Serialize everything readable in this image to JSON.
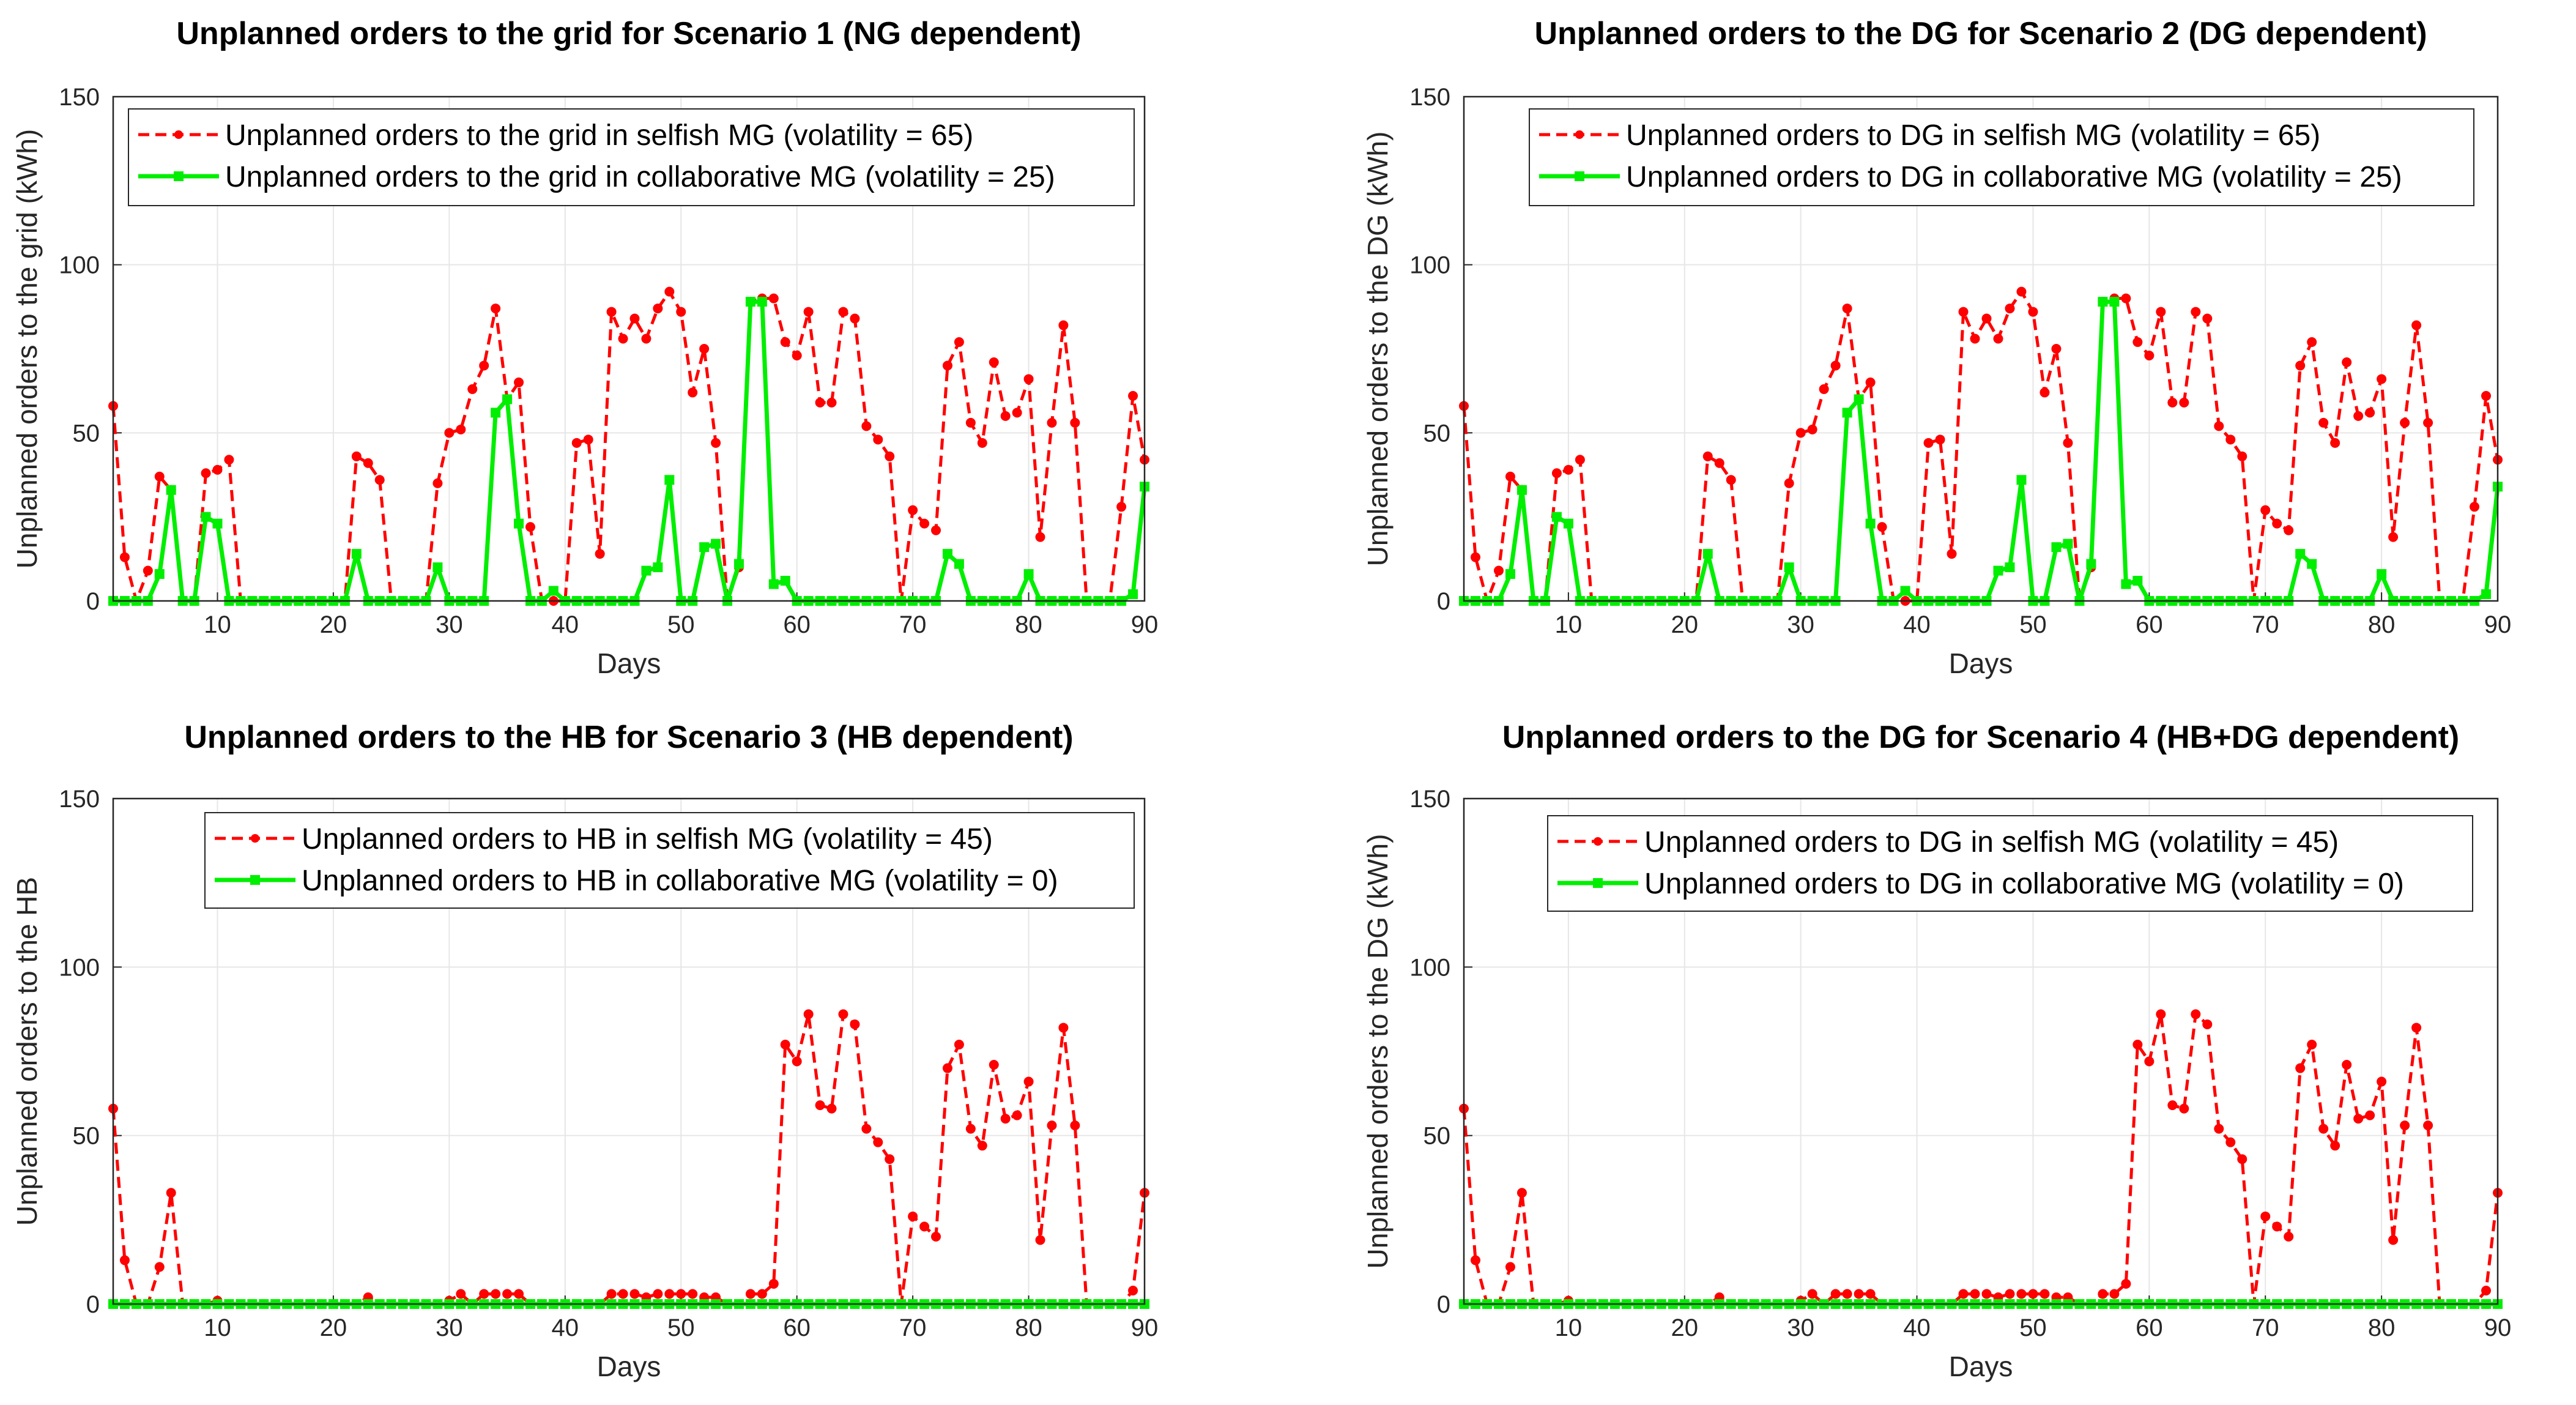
{
  "colors": {
    "selfish": "#ff0000",
    "collaborative": "#00ee00",
    "grid": "#e6e6e6",
    "axis": "#262626"
  },
  "chart_data": [
    {
      "type": "line",
      "title": "Unplanned orders to the grid for Scenario 1 (NG dependent)",
      "xlabel": "Days",
      "ylabel": "Unplanned orders to the grid (kWh)",
      "xlim": [
        1,
        90
      ],
      "ylim": [
        0,
        150
      ],
      "xticks": [
        10,
        20,
        30,
        40,
        50,
        60,
        70,
        80,
        90
      ],
      "yticks": [
        0,
        50,
        100,
        150
      ],
      "legend_position": "top-left",
      "series": [
        {
          "name": "Unplanned orders to the grid in selfish MG (volatility = 65)",
          "style": "dashed-circle",
          "values": [
            58,
            13,
            0,
            9,
            37,
            33,
            0,
            0,
            38,
            39,
            42,
            0,
            0,
            0,
            0,
            0,
            0,
            0,
            0,
            0,
            0,
            43,
            41,
            36,
            0,
            0,
            0,
            0,
            35,
            50,
            51,
            63,
            70,
            87,
            60,
            65,
            22,
            0,
            0,
            0,
            47,
            48,
            14,
            86,
            78,
            84,
            78,
            87,
            92,
            86,
            62,
            75,
            47,
            0,
            10,
            89,
            90,
            90,
            77,
            73,
            86,
            59,
            59,
            86,
            84,
            52,
            48,
            43,
            0,
            27,
            23,
            21,
            70,
            77,
            53,
            47,
            71,
            55,
            56,
            66,
            19,
            53,
            82,
            53,
            0,
            0,
            0,
            28,
            61,
            42
          ]
        },
        {
          "name": "Unplanned orders to the grid in collaborative MG (volatility = 25)",
          "style": "solid-square",
          "values": [
            0,
            0,
            0,
            0,
            8,
            33,
            0,
            0,
            25,
            23,
            0,
            0,
            0,
            0,
            0,
            0,
            0,
            0,
            0,
            0,
            0,
            14,
            0,
            0,
            0,
            0,
            0,
            0,
            10,
            0,
            0,
            0,
            0,
            56,
            60,
            23,
            0,
            0,
            3,
            0,
            0,
            0,
            0,
            0,
            0,
            0,
            9,
            10,
            36,
            0,
            0,
            16,
            17,
            0,
            11,
            89,
            89,
            5,
            6,
            0,
            0,
            0,
            0,
            0,
            0,
            0,
            0,
            0,
            0,
            0,
            0,
            0,
            14,
            11,
            0,
            0,
            0,
            0,
            0,
            8,
            0,
            0,
            0,
            0,
            0,
            0,
            0,
            0,
            2,
            34
          ]
        }
      ]
    },
    {
      "type": "line",
      "title": "Unplanned orders to the DG for Scenario 2 (DG dependent)",
      "xlabel": "Days",
      "ylabel": "Unplanned orders to the DG (kWh)",
      "xlim": [
        1,
        90
      ],
      "ylim": [
        0,
        150
      ],
      "xticks": [
        10,
        20,
        30,
        40,
        50,
        60,
        70,
        80,
        90
      ],
      "yticks": [
        0,
        50,
        100,
        150
      ],
      "legend_position": "top-left",
      "series": [
        {
          "name": "Unplanned orders to DG in selfish MG (volatility = 65)",
          "style": "dashed-circle",
          "values": [
            58,
            13,
            0,
            9,
            37,
            33,
            0,
            0,
            38,
            39,
            42,
            0,
            0,
            0,
            0,
            0,
            0,
            0,
            0,
            0,
            0,
            43,
            41,
            36,
            0,
            0,
            0,
            0,
            35,
            50,
            51,
            63,
            70,
            87,
            60,
            65,
            22,
            0,
            0,
            0,
            47,
            48,
            14,
            86,
            78,
            84,
            78,
            87,
            92,
            86,
            62,
            75,
            47,
            0,
            10,
            89,
            90,
            90,
            77,
            73,
            86,
            59,
            59,
            86,
            84,
            52,
            48,
            43,
            0,
            27,
            23,
            21,
            70,
            77,
            53,
            47,
            71,
            55,
            56,
            66,
            19,
            53,
            82,
            53,
            0,
            0,
            0,
            28,
            61,
            42
          ]
        },
        {
          "name": "Unplanned orders to DG in collaborative MG (volatility = 25)",
          "style": "solid-square",
          "values": [
            0,
            0,
            0,
            0,
            8,
            33,
            0,
            0,
            25,
            23,
            0,
            0,
            0,
            0,
            0,
            0,
            0,
            0,
            0,
            0,
            0,
            14,
            0,
            0,
            0,
            0,
            0,
            0,
            10,
            0,
            0,
            0,
            0,
            56,
            60,
            23,
            0,
            0,
            3,
            0,
            0,
            0,
            0,
            0,
            0,
            0,
            9,
            10,
            36,
            0,
            0,
            16,
            17,
            0,
            11,
            89,
            89,
            5,
            6,
            0,
            0,
            0,
            0,
            0,
            0,
            0,
            0,
            0,
            0,
            0,
            0,
            0,
            14,
            11,
            0,
            0,
            0,
            0,
            0,
            8,
            0,
            0,
            0,
            0,
            0,
            0,
            0,
            0,
            2,
            34
          ]
        }
      ]
    },
    {
      "type": "line",
      "title": "Unplanned orders to the HB for Scenario 3 (HB dependent)",
      "xlabel": "Days",
      "ylabel": "Unplanned orders to the HB",
      "xlim": [
        1,
        90
      ],
      "ylim": [
        0,
        150
      ],
      "xticks": [
        10,
        20,
        30,
        40,
        50,
        60,
        70,
        80,
        90
      ],
      "yticks": [
        0,
        50,
        100,
        150
      ],
      "legend_position": "top-right",
      "series": [
        {
          "name": "Unplanned orders to HB in selfish MG (volatility = 45)",
          "style": "dashed-circle",
          "values": [
            58,
            13,
            0,
            0,
            11,
            33,
            0,
            0,
            0,
            1,
            0,
            0,
            0,
            0,
            0,
            0,
            0,
            0,
            0,
            0,
            0,
            0,
            2,
            0,
            0,
            0,
            0,
            0,
            0,
            1,
            3,
            0,
            3,
            3,
            3,
            3,
            0,
            0,
            0,
            0,
            0,
            0,
            0,
            3,
            3,
            3,
            2,
            3,
            3,
            3,
            3,
            2,
            2,
            0,
            0,
            3,
            3,
            6,
            77,
            72,
            86,
            59,
            58,
            86,
            83,
            52,
            48,
            43,
            0,
            26,
            23,
            20,
            70,
            77,
            52,
            47,
            71,
            55,
            56,
            66,
            19,
            53,
            82,
            53,
            0,
            0,
            0,
            0,
            4,
            33
          ]
        },
        {
          "name": "Unplanned orders to HB in collaborative MG (volatility = 0)",
          "style": "solid-square",
          "values": [
            0,
            0,
            0,
            0,
            0,
            0,
            0,
            0,
            0,
            0,
            0,
            0,
            0,
            0,
            0,
            0,
            0,
            0,
            0,
            0,
            0,
            0,
            0,
            0,
            0,
            0,
            0,
            0,
            0,
            0,
            0,
            0,
            0,
            0,
            0,
            0,
            0,
            0,
            0,
            0,
            0,
            0,
            0,
            0,
            0,
            0,
            0,
            0,
            0,
            0,
            0,
            0,
            0,
            0,
            0,
            0,
            0,
            0,
            0,
            0,
            0,
            0,
            0,
            0,
            0,
            0,
            0,
            0,
            0,
            0,
            0,
            0,
            0,
            0,
            0,
            0,
            0,
            0,
            0,
            0,
            0,
            0,
            0,
            0,
            0,
            0,
            0,
            0,
            0,
            0
          ]
        }
      ]
    },
    {
      "type": "line",
      "title": "Unplanned orders to the DG for Scenario 4 (HB+DG dependent)",
      "xlabel": "Days",
      "ylabel": "Unplanned orders to the DG (kWh)",
      "xlim": [
        1,
        90
      ],
      "ylim": [
        0,
        150
      ],
      "xticks": [
        10,
        20,
        30,
        40,
        50,
        60,
        70,
        80,
        90
      ],
      "yticks": [
        0,
        50,
        100,
        150
      ],
      "legend_position": "top-right",
      "series": [
        {
          "name": "Unplanned orders to DG in selfish MG (volatility = 45)",
          "style": "dashed-circle",
          "values": [
            58,
            13,
            0,
            0,
            11,
            33,
            0,
            0,
            0,
            1,
            0,
            0,
            0,
            0,
            0,
            0,
            0,
            0,
            0,
            0,
            0,
            0,
            2,
            0,
            0,
            0,
            0,
            0,
            0,
            1,
            3,
            0,
            3,
            3,
            3,
            3,
            0,
            0,
            0,
            0,
            0,
            0,
            0,
            3,
            3,
            3,
            2,
            3,
            3,
            3,
            3,
            2,
            2,
            0,
            0,
            3,
            3,
            6,
            77,
            72,
            86,
            59,
            58,
            86,
            83,
            52,
            48,
            43,
            0,
            26,
            23,
            20,
            70,
            77,
            52,
            47,
            71,
            55,
            56,
            66,
            19,
            53,
            82,
            53,
            0,
            0,
            0,
            0,
            4,
            33
          ]
        },
        {
          "name": "Unplanned orders to DG in collaborative MG (volatility = 0)",
          "style": "solid-square",
          "values": [
            0,
            0,
            0,
            0,
            0,
            0,
            0,
            0,
            0,
            0,
            0,
            0,
            0,
            0,
            0,
            0,
            0,
            0,
            0,
            0,
            0,
            0,
            0,
            0,
            0,
            0,
            0,
            0,
            0,
            0,
            0,
            0,
            0,
            0,
            0,
            0,
            0,
            0,
            0,
            0,
            0,
            0,
            0,
            0,
            0,
            0,
            0,
            0,
            0,
            0,
            0,
            0,
            0,
            0,
            0,
            0,
            0,
            0,
            0,
            0,
            0,
            0,
            0,
            0,
            0,
            0,
            0,
            0,
            0,
            0,
            0,
            0,
            0,
            0,
            0,
            0,
            0,
            0,
            0,
            0,
            0,
            0,
            0,
            0,
            0,
            0,
            0,
            0,
            0,
            0
          ]
        }
      ]
    }
  ]
}
